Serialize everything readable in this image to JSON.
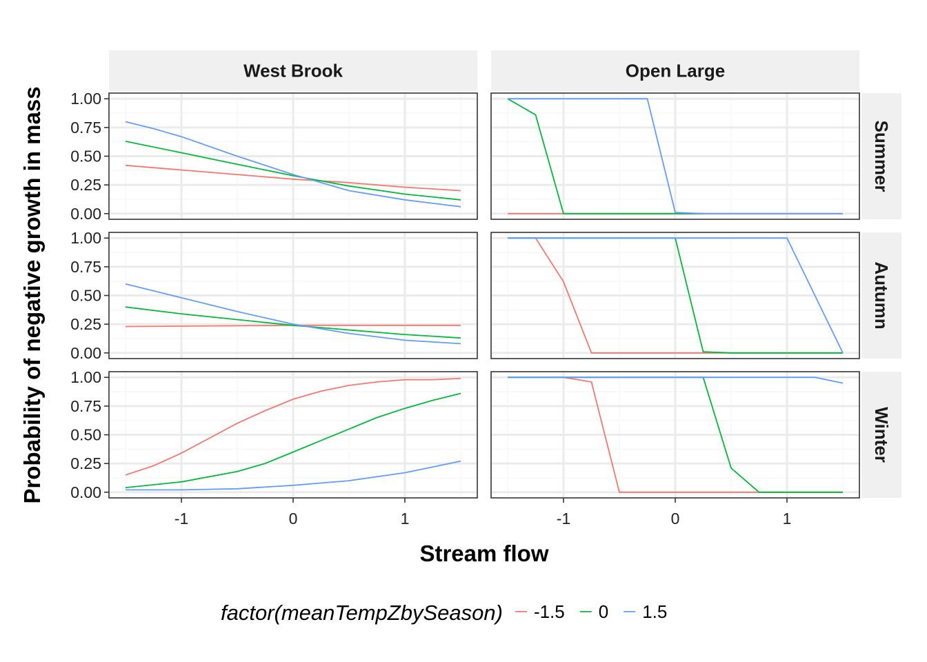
{
  "chart_data": {
    "type": "line",
    "facet_cols": [
      "West Brook",
      "Open Large"
    ],
    "facet_rows": [
      "Summer",
      "Autumn",
      "Winter"
    ],
    "xlabel": "Stream flow",
    "ylabel": "Probability of negative growth in mass",
    "xlim": [
      -1.5,
      1.5
    ],
    "ylim": [
      0,
      1
    ],
    "x_ticks": [
      -1,
      0,
      1
    ],
    "x_tick_labels": [
      "-1",
      "0",
      "1"
    ],
    "y_ticks": [
      0,
      0.25,
      0.5,
      0.75,
      1
    ],
    "y_tick_labels": [
      "0.00",
      "0.25",
      "0.50",
      "0.75",
      "1.00"
    ],
    "grid": true,
    "legend": {
      "title": "factor(meanTempZbySeason)",
      "placement": "bottom",
      "entries": [
        "-1.5",
        "0",
        "1.5"
      ]
    },
    "colors": {
      "-1.5": "#F8766D",
      "0": "#00BA38",
      "1.5": "#619CFF"
    },
    "panels": [
      {
        "row": "Summer",
        "col": "West Brook",
        "series": [
          {
            "temp": "-1.5",
            "points": [
              [
                -1.5,
                0.42
              ],
              [
                -1,
                0.38
              ],
              [
                -0.5,
                0.34
              ],
              [
                0,
                0.3
              ],
              [
                0.5,
                0.27
              ],
              [
                1,
                0.23
              ],
              [
                1.5,
                0.2
              ]
            ]
          },
          {
            "temp": "0",
            "points": [
              [
                -1.5,
                0.63
              ],
              [
                -1,
                0.53
              ],
              [
                -0.5,
                0.43
              ],
              [
                0,
                0.33
              ],
              [
                0.5,
                0.24
              ],
              [
                1,
                0.17
              ],
              [
                1.5,
                0.12
              ]
            ]
          },
          {
            "temp": "1.5",
            "points": [
              [
                -1.5,
                0.8
              ],
              [
                -1.25,
                0.74
              ],
              [
                -1,
                0.67
              ],
              [
                -0.5,
                0.5
              ],
              [
                0,
                0.34
              ],
              [
                0.5,
                0.2
              ],
              [
                1,
                0.12
              ],
              [
                1.5,
                0.06
              ]
            ]
          }
        ]
      },
      {
        "row": "Summer",
        "col": "Open Large",
        "series": [
          {
            "temp": "-1.5",
            "points": [
              [
                -1.5,
                0
              ],
              [
                1.5,
                0
              ]
            ]
          },
          {
            "temp": "0",
            "points": [
              [
                -1.5,
                1
              ],
              [
                -1.25,
                0.86
              ],
              [
                -1,
                0
              ],
              [
                0,
                0
              ],
              [
                0.25,
                0
              ]
            ]
          },
          {
            "temp": "1.5",
            "points": [
              [
                -1.5,
                1
              ],
              [
                -0.25,
                1
              ],
              [
                0,
                0.01
              ],
              [
                0.25,
                0
              ],
              [
                1.5,
                0
              ]
            ]
          }
        ]
      },
      {
        "row": "Autumn",
        "col": "West Brook",
        "series": [
          {
            "temp": "-1.5",
            "points": [
              [
                -1.5,
                0.23
              ],
              [
                0,
                0.24
              ],
              [
                1.5,
                0.24
              ]
            ]
          },
          {
            "temp": "0",
            "points": [
              [
                -1.5,
                0.4
              ],
              [
                -1,
                0.34
              ],
              [
                -0.5,
                0.29
              ],
              [
                0,
                0.24
              ],
              [
                0.5,
                0.2
              ],
              [
                1,
                0.16
              ],
              [
                1.5,
                0.13
              ]
            ]
          },
          {
            "temp": "1.5",
            "points": [
              [
                -1.5,
                0.6
              ],
              [
                -1,
                0.48
              ],
              [
                -0.5,
                0.36
              ],
              [
                0,
                0.25
              ],
              [
                0.5,
                0.17
              ],
              [
                1,
                0.11
              ],
              [
                1.5,
                0.08
              ]
            ]
          }
        ]
      },
      {
        "row": "Autumn",
        "col": "Open Large",
        "series": [
          {
            "temp": "-1.5",
            "points": [
              [
                -1.5,
                1
              ],
              [
                -1.25,
                1
              ],
              [
                -1,
                0.62
              ],
              [
                -0.75,
                0
              ],
              [
                1.5,
                0
              ]
            ]
          },
          {
            "temp": "0",
            "points": [
              [
                -1.5,
                1
              ],
              [
                0,
                1
              ],
              [
                0.25,
                0.01
              ],
              [
                0.5,
                0
              ],
              [
                1.5,
                0
              ]
            ]
          },
          {
            "temp": "1.5",
            "points": [
              [
                -1.5,
                1
              ],
              [
                1,
                1
              ],
              [
                1.5,
                0
              ]
            ]
          }
        ]
      },
      {
        "row": "Winter",
        "col": "West Brook",
        "series": [
          {
            "temp": "-1.5",
            "points": [
              [
                -1.5,
                0.15
              ],
              [
                -1.25,
                0.23
              ],
              [
                -1,
                0.34
              ],
              [
                -0.75,
                0.47
              ],
              [
                -0.5,
                0.6
              ],
              [
                -0.25,
                0.71
              ],
              [
                0,
                0.81
              ],
              [
                0.25,
                0.88
              ],
              [
                0.5,
                0.93
              ],
              [
                0.75,
                0.96
              ],
              [
                1,
                0.98
              ],
              [
                1.25,
                0.98
              ],
              [
                1.5,
                0.99
              ]
            ]
          },
          {
            "temp": "0",
            "points": [
              [
                -1.5,
                0.04
              ],
              [
                -1,
                0.09
              ],
              [
                -0.5,
                0.18
              ],
              [
                -0.25,
                0.25
              ],
              [
                0,
                0.35
              ],
              [
                0.25,
                0.45
              ],
              [
                0.5,
                0.55
              ],
              [
                0.75,
                0.65
              ],
              [
                1,
                0.73
              ],
              [
                1.25,
                0.8
              ],
              [
                1.5,
                0.86
              ]
            ]
          },
          {
            "temp": "1.5",
            "points": [
              [
                -1.5,
                0.02
              ],
              [
                -1,
                0.02
              ],
              [
                -0.5,
                0.03
              ],
              [
                0,
                0.06
              ],
              [
                0.5,
                0.1
              ],
              [
                1,
                0.17
              ],
              [
                1.5,
                0.27
              ]
            ]
          }
        ]
      },
      {
        "row": "Winter",
        "col": "Open Large",
        "series": [
          {
            "temp": "-1.5",
            "points": [
              [
                -1.5,
                1
              ],
              [
                -1,
                1
              ],
              [
                -0.75,
                0.96
              ],
              [
                -0.5,
                0
              ],
              [
                1.5,
                0
              ]
            ]
          },
          {
            "temp": "0",
            "points": [
              [
                -1.5,
                1
              ],
              [
                0.25,
                1
              ],
              [
                0.5,
                0.21
              ],
              [
                0.75,
                0
              ],
              [
                1.5,
                0
              ]
            ]
          },
          {
            "temp": "1.5",
            "points": [
              [
                -1.5,
                1
              ],
              [
                1.25,
                1
              ],
              [
                1.5,
                0.95
              ]
            ]
          }
        ]
      }
    ]
  }
}
